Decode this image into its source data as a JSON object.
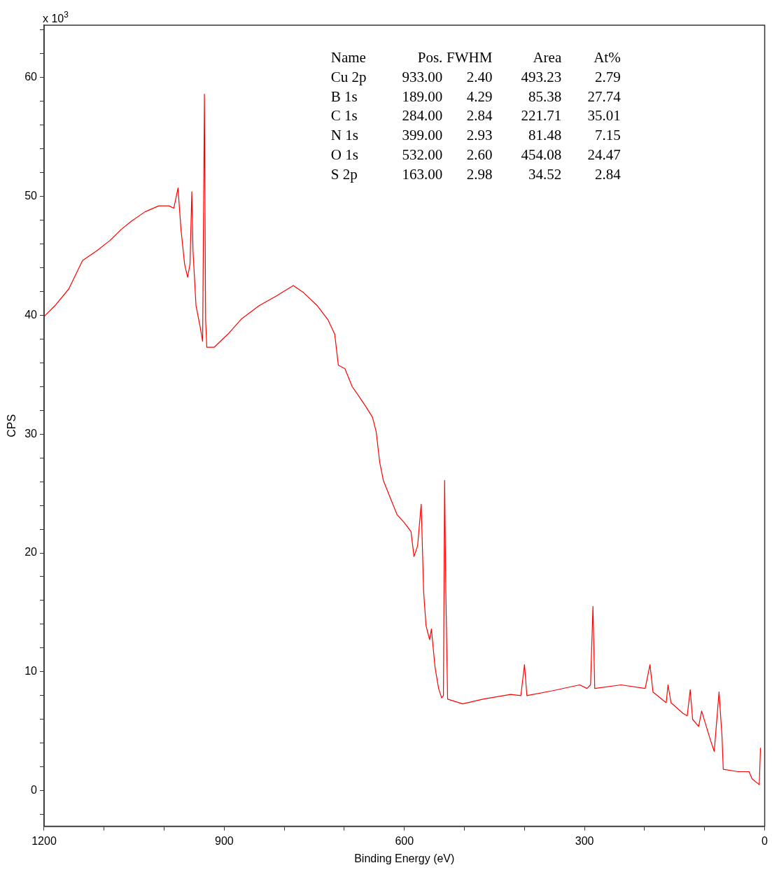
{
  "chart_data": {
    "type": "line",
    "xlabel": "Binding Energy (eV)",
    "ylabel": "CPS",
    "annotations": [
      "x 10$^{3}$",
      "Name",
      "Pos.",
      "FWHM",
      "Area",
      "At%",
      "Cu 2p",
      "933.00",
      "2.40",
      "493.23",
      "2.79",
      "B 1s",
      "189.00",
      "4.29",
      "85.38",
      "27.74",
      "C 1s",
      "284.00",
      "2.84",
      "221.71",
      "35.01",
      "N 1s",
      "399.00",
      "2.93",
      "81.48",
      "7.15",
      "O 1s",
      "532.00",
      "2.60",
      "454.08",
      "24.47",
      "S 2p",
      "163.00",
      "2.98",
      "34.52",
      "2.84"
    ],
    "x": [
      1200,
      1182,
      1159,
      1136,
      1113,
      1090,
      1072,
      1055,
      1032,
      1009,
      992,
      984,
      977,
      972,
      966,
      961,
      957,
      954,
      952,
      947,
      940,
      936,
      933,
      931,
      929,
      917,
      894,
      871,
      842,
      814,
      785,
      768,
      745,
      727,
      716,
      710,
      699,
      687,
      676,
      664,
      653,
      647,
      641,
      635,
      624,
      612,
      601,
      589,
      584,
      578,
      572,
      568,
      564,
      558,
      555,
      549,
      543,
      538,
      535,
      533,
      531,
      528,
      503,
      469,
      423,
      406,
      400,
      396,
      354,
      308,
      296,
      290,
      286,
      283,
      239,
      199,
      191,
      186,
      164,
      161,
      156,
      136,
      129,
      124,
      120,
      110,
      105,
      99,
      90,
      84,
      76,
      71,
      69,
      44,
      26,
      21,
      9,
      7
    ],
    "series": [
      {
        "color": "#ff0000",
        "values": [
          39.9,
          40.8,
          42.2,
          44.6,
          45.4,
          46.3,
          47.2,
          47.9,
          48.7,
          49.2,
          49.2,
          49.0,
          50.7,
          47.2,
          44.3,
          43.2,
          44.3,
          50.4,
          45.4,
          40.8,
          39.0,
          37.8,
          58.6,
          39.6,
          37.3,
          37.3,
          38.4,
          39.7,
          40.8,
          41.6,
          42.5,
          41.9,
          40.8,
          39.6,
          38.4,
          35.8,
          35.5,
          34.0,
          33.2,
          32.3,
          31.4,
          30.2,
          27.6,
          26.1,
          24.7,
          23.2,
          22.6,
          21.8,
          19.7,
          20.6,
          24.1,
          16.8,
          13.9,
          12.7,
          13.6,
          10.4,
          8.6,
          7.8,
          8.0,
          26.1,
          16.8,
          7.7,
          7.3,
          7.7,
          8.1,
          8.0,
          10.6,
          8.0,
          8.4,
          8.9,
          8.6,
          8.9,
          15.5,
          8.6,
          8.9,
          8.6,
          10.6,
          8.3,
          7.4,
          8.9,
          7.4,
          6.5,
          6.3,
          8.5,
          6.0,
          5.4,
          6.7,
          5.7,
          4.2,
          3.3,
          8.3,
          4.5,
          1.8,
          1.6,
          1.6,
          1.0,
          0.5,
          3.6
        ]
      }
    ],
    "xlim": [
      1200,
      0
    ],
    "xticks": [
      1200,
      {
        "value": 1100,
        "label": null
      },
      {
        "value": 1000,
        "label": null
      },
      900,
      {
        "value": 800,
        "label": null
      },
      {
        "value": 700,
        "label": null
      },
      600,
      {
        "value": 500,
        "label": null
      },
      {
        "value": 400,
        "label": null
      },
      300,
      {
        "value": 200,
        "label": null
      },
      {
        "value": 100,
        "label": null
      },
      0
    ],
    "ylim": [
      -3,
      64.4
    ],
    "yticks": [
      {
        "value": -2,
        "label": null
      },
      0,
      {
        "value": 2,
        "label": null
      },
      {
        "value": 4,
        "label": null
      },
      {
        "value": 6,
        "label": null
      },
      {
        "value": 8,
        "label": null
      },
      10,
      {
        "value": 12,
        "label": null
      },
      {
        "value": 14,
        "label": null
      },
      {
        "value": 16,
        "label": null
      },
      {
        "value": 18,
        "label": null
      },
      20,
      {
        "value": 22,
        "label": null
      },
      {
        "value": 24,
        "label": null
      },
      {
        "value": 26,
        "label": null
      },
      {
        "value": 28,
        "label": null
      },
      30,
      {
        "value": 32,
        "label": null
      },
      {
        "value": 34,
        "label": null
      },
      {
        "value": 36,
        "label": null
      },
      {
        "value": 38,
        "label": null
      },
      40,
      {
        "value": 42,
        "label": null
      },
      {
        "value": 44,
        "label": null
      },
      {
        "value": 46,
        "label": null
      },
      {
        "value": 48,
        "label": null
      },
      50,
      {
        "value": 52,
        "label": null
      },
      {
        "value": 54,
        "label": null
      },
      {
        "value": 56,
        "label": null
      },
      {
        "value": 58,
        "label": null
      },
      60,
      {
        "value": 62,
        "label": null
      },
      {
        "value": 64,
        "label": null
      }
    ],
    "grid": false,
    "legend": false,
    "marker": "none",
    "line_style": "solid"
  }
}
